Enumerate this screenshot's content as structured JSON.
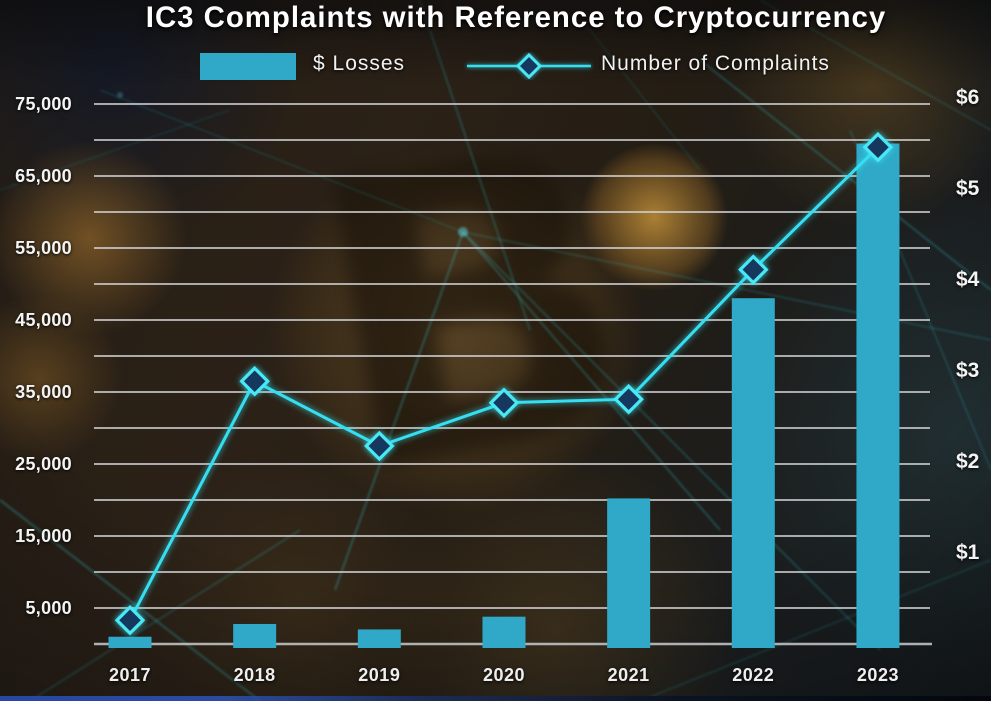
{
  "title": "IC3 Complaints with Reference to Cryptocurrency",
  "legend": {
    "losses_label": "$ Losses",
    "complaints_label": "Number of Complaints"
  },
  "colors": {
    "bar": "#2fa9c7",
    "line": "#35dff2",
    "marker_fill": "#16395f",
    "marker_stroke": "#49e8f5",
    "gridline": "#d2d3d6",
    "axis_line": "#c9cacd",
    "label_text": "#f4f4f4"
  },
  "chart_data": {
    "type": "bar+line combo",
    "title": "IC3 Complaints with Reference to Cryptocurrency",
    "categories": [
      "2017",
      "2018",
      "2019",
      "2020",
      "2021",
      "2022",
      "2023"
    ],
    "series": [
      {
        "name": "$ Losses",
        "type": "bar",
        "axis": "right",
        "unit": "USD billions",
        "values": [
          0.08,
          0.22,
          0.16,
          0.3,
          1.6,
          3.8,
          5.5
        ]
      },
      {
        "name": "Number of Complaints",
        "type": "line",
        "axis": "left",
        "marker": "diamond",
        "values": [
          3300,
          36500,
          27500,
          33500,
          34000,
          52000,
          69000
        ]
      }
    ],
    "left_axis": {
      "min": 0,
      "max": 75000,
      "grid_step": 5000,
      "tick_values": [
        75000,
        65000,
        55000,
        45000,
        35000,
        25000,
        15000,
        5000
      ],
      "tick_labels": [
        "75,000",
        "65,000",
        "55,000",
        "45,000",
        "35,000",
        "25,000",
        "15,000",
        "5,000"
      ]
    },
    "right_axis": {
      "min": 0,
      "max": 6,
      "tick_values": [
        6,
        5,
        4,
        3,
        2,
        1
      ],
      "tick_labels": [
        "$6",
        "$5",
        "$4",
        "$3",
        "$2",
        "$1"
      ]
    },
    "legend_position": "top",
    "grid": true
  }
}
